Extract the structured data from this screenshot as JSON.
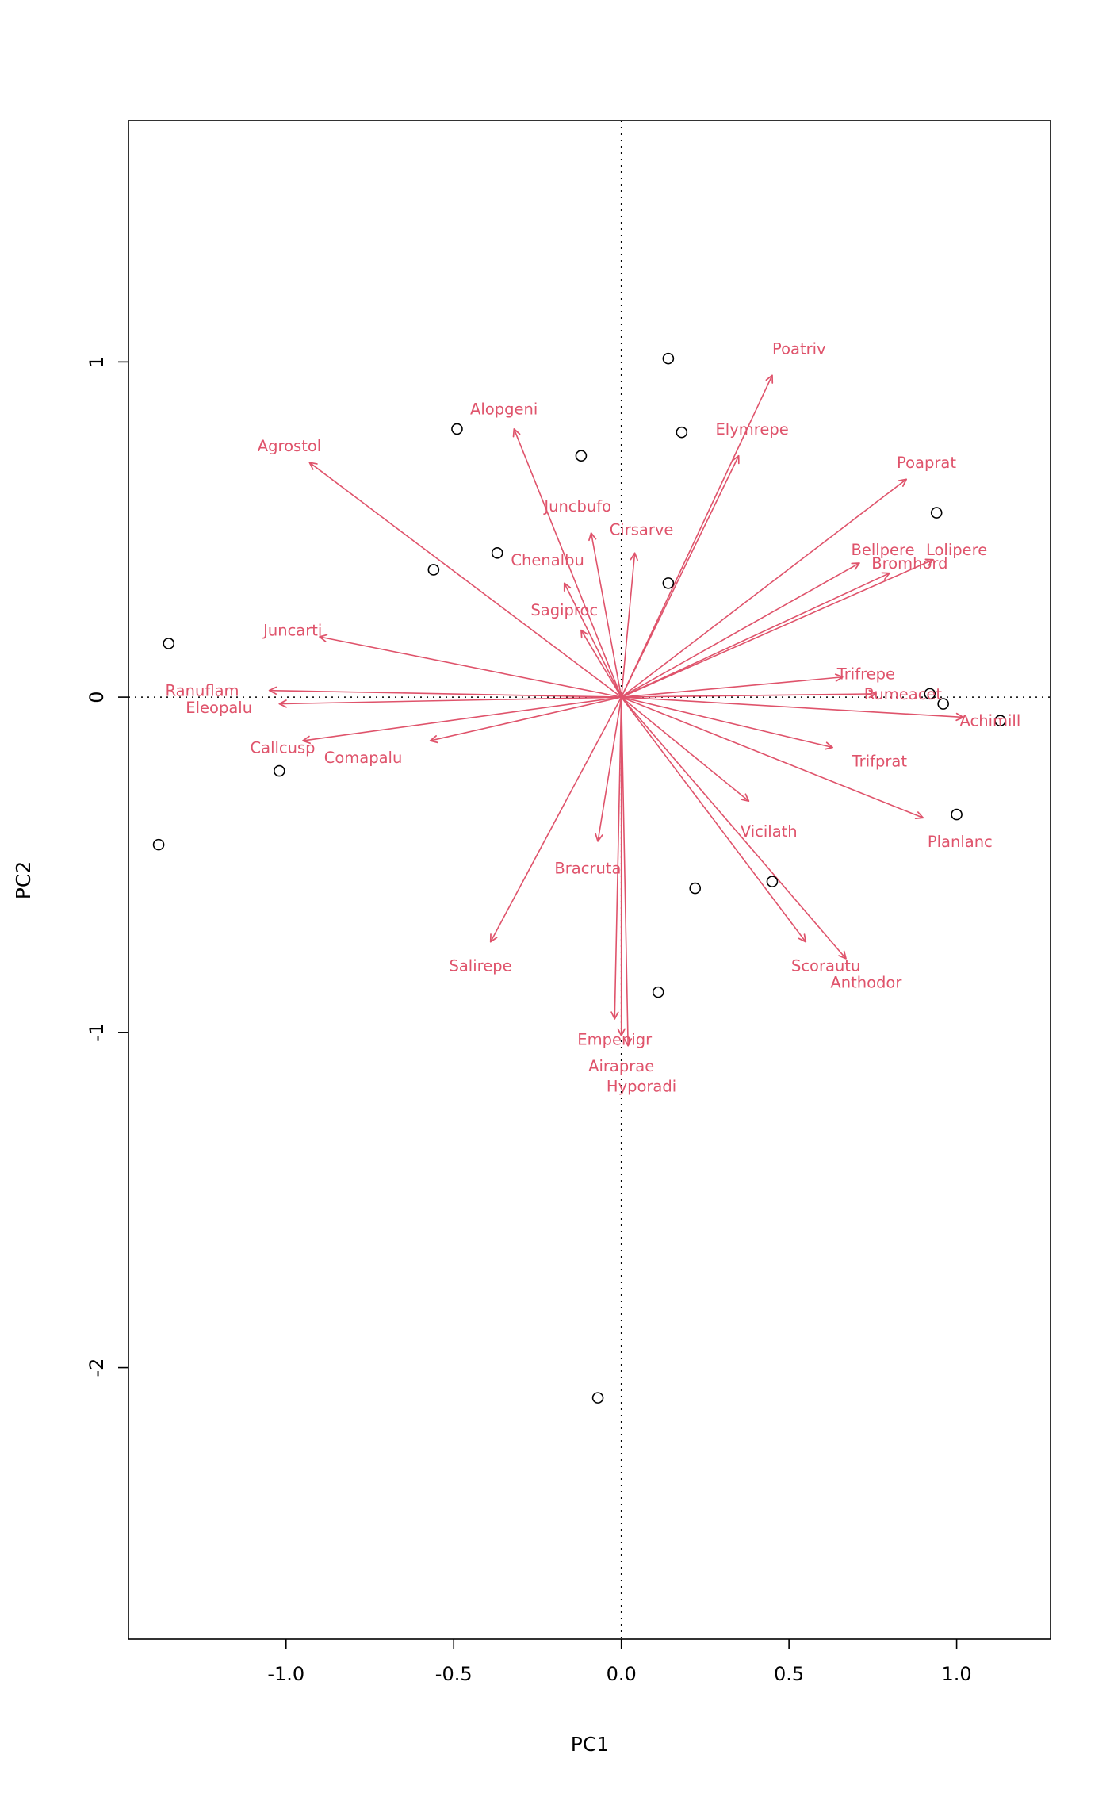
{
  "chart_data": {
    "type": "scatter",
    "subtype": "pca-biplot",
    "title": "",
    "xlabel": "PC1",
    "ylabel": "PC2",
    "xlim": [
      -1.47,
      1.28
    ],
    "ylim": [
      -2.81,
      1.72
    ],
    "x_ticks": [
      -1.0,
      -0.5,
      0.0,
      0.5,
      1.0
    ],
    "x_tick_labels": [
      "-1.0",
      "-0.5",
      "0.0",
      "0.5",
      "1.0"
    ],
    "y_ticks": [
      -2,
      -1,
      0,
      1
    ],
    "y_tick_labels": [
      "-2",
      "-1",
      "0",
      "1"
    ],
    "grid": false,
    "reference_lines": {
      "vertical_at": 0,
      "horizontal_at": 0,
      "style": "dotted"
    },
    "species_color": "#DF536B",
    "axis_color": "#000000",
    "site_point_style": "open-circle",
    "species_vectors": [
      {
        "name": "Poatriv",
        "tip": [
          0.45,
          0.96
        ],
        "label": [
          0.53,
          1.04
        ]
      },
      {
        "name": "Elymrepe",
        "tip": [
          0.35,
          0.72
        ],
        "label": [
          0.39,
          0.8
        ]
      },
      {
        "name": "Alopgeni",
        "tip": [
          -0.32,
          0.8
        ],
        "label": [
          -0.35,
          0.86
        ]
      },
      {
        "name": "Agrostol",
        "tip": [
          -0.93,
          0.7
        ],
        "label": [
          -0.99,
          0.75
        ]
      },
      {
        "name": "Poaprat",
        "tip": [
          0.85,
          0.65
        ],
        "label": [
          0.91,
          0.7
        ]
      },
      {
        "name": "Juncbufo",
        "tip": [
          -0.09,
          0.49
        ],
        "label": [
          -0.13,
          0.57
        ]
      },
      {
        "name": "Cirsarve",
        "tip": [
          0.04,
          0.43
        ],
        "label": [
          0.06,
          0.5
        ]
      },
      {
        "name": "Bellpere",
        "tip": [
          0.71,
          0.4
        ],
        "label": [
          0.78,
          0.44
        ]
      },
      {
        "name": "Lolipere",
        "tip": [
          0.93,
          0.41
        ],
        "label": [
          1.0,
          0.44
        ]
      },
      {
        "name": "Bromhord",
        "tip": [
          0.8,
          0.37
        ],
        "label": [
          0.86,
          0.4
        ]
      },
      {
        "name": "Chenalbu",
        "tip": [
          -0.17,
          0.34
        ],
        "label": [
          -0.22,
          0.41
        ]
      },
      {
        "name": "Sagiproc",
        "tip": [
          -0.12,
          0.2
        ],
        "label": [
          -0.17,
          0.26
        ]
      },
      {
        "name": "Juncarti",
        "tip": [
          -0.9,
          0.18
        ],
        "label": [
          -0.98,
          0.2
        ]
      },
      {
        "name": "Trifrepe",
        "tip": [
          0.66,
          0.06
        ],
        "label": [
          0.73,
          0.07
        ]
      },
      {
        "name": "Ranuflam",
        "tip": [
          -1.05,
          0.02
        ],
        "label": [
          -1.25,
          0.02
        ]
      },
      {
        "name": "Rumeacet",
        "tip": [
          0.76,
          0.01
        ],
        "label": [
          0.84,
          0.01
        ]
      },
      {
        "name": "Eleopalu",
        "tip": [
          -1.02,
          -0.02
        ],
        "label": [
          -1.2,
          -0.03
        ]
      },
      {
        "name": "Achimill",
        "tip": [
          1.02,
          -0.06
        ],
        "label": [
          1.1,
          -0.07
        ]
      },
      {
        "name": "Callcusp",
        "tip": [
          -0.95,
          -0.13
        ],
        "label": [
          -1.01,
          -0.15
        ]
      },
      {
        "name": "Comapalu",
        "tip": [
          -0.57,
          -0.13
        ],
        "label": [
          -0.77,
          -0.18
        ]
      },
      {
        "name": "Trifprat",
        "tip": [
          0.63,
          -0.15
        ],
        "label": [
          0.77,
          -0.19
        ]
      },
      {
        "name": "Vicilath",
        "tip": [
          0.38,
          -0.31
        ],
        "label": [
          0.44,
          -0.4
        ]
      },
      {
        "name": "Planlanc",
        "tip": [
          0.9,
          -0.36
        ],
        "label": [
          1.01,
          -0.43
        ]
      },
      {
        "name": "Bracruta",
        "tip": [
          -0.07,
          -0.43
        ],
        "label": [
          -0.1,
          -0.51
        ]
      },
      {
        "name": "Salirepe",
        "tip": [
          -0.39,
          -0.73
        ],
        "label": [
          -0.42,
          -0.8
        ]
      },
      {
        "name": "Scorautu",
        "tip": [
          0.55,
          -0.73
        ],
        "label": [
          0.61,
          -0.8
        ]
      },
      {
        "name": "Anthodor",
        "tip": [
          0.67,
          -0.78
        ],
        "label": [
          0.73,
          -0.85
        ]
      },
      {
        "name": "Empenigr",
        "tip": [
          -0.02,
          -0.96
        ],
        "label": [
          -0.02,
          -1.02
        ]
      },
      {
        "name": "Airaprae",
        "tip": [
          0.0,
          -1.01
        ],
        "label": [
          0.0,
          -1.1
        ]
      },
      {
        "name": "Hyporadi",
        "tip": [
          0.02,
          -1.04
        ],
        "label": [
          0.06,
          -1.16
        ]
      }
    ],
    "site_points": [
      [
        0.14,
        1.01
      ],
      [
        0.18,
        0.79
      ],
      [
        -0.49,
        0.8
      ],
      [
        -0.12,
        0.72
      ],
      [
        0.94,
        0.55
      ],
      [
        -0.37,
        0.43
      ],
      [
        -0.56,
        0.38
      ],
      [
        0.14,
        0.34
      ],
      [
        -1.35,
        0.16
      ],
      [
        0.92,
        0.01
      ],
      [
        0.96,
        -0.02
      ],
      [
        1.13,
        -0.07
      ],
      [
        -1.02,
        -0.22
      ],
      [
        1.0,
        -0.35
      ],
      [
        -1.38,
        -0.44
      ],
      [
        0.22,
        -0.57
      ],
      [
        0.45,
        -0.55
      ],
      [
        0.11,
        -0.88
      ],
      [
        -0.07,
        -2.09
      ]
    ]
  }
}
